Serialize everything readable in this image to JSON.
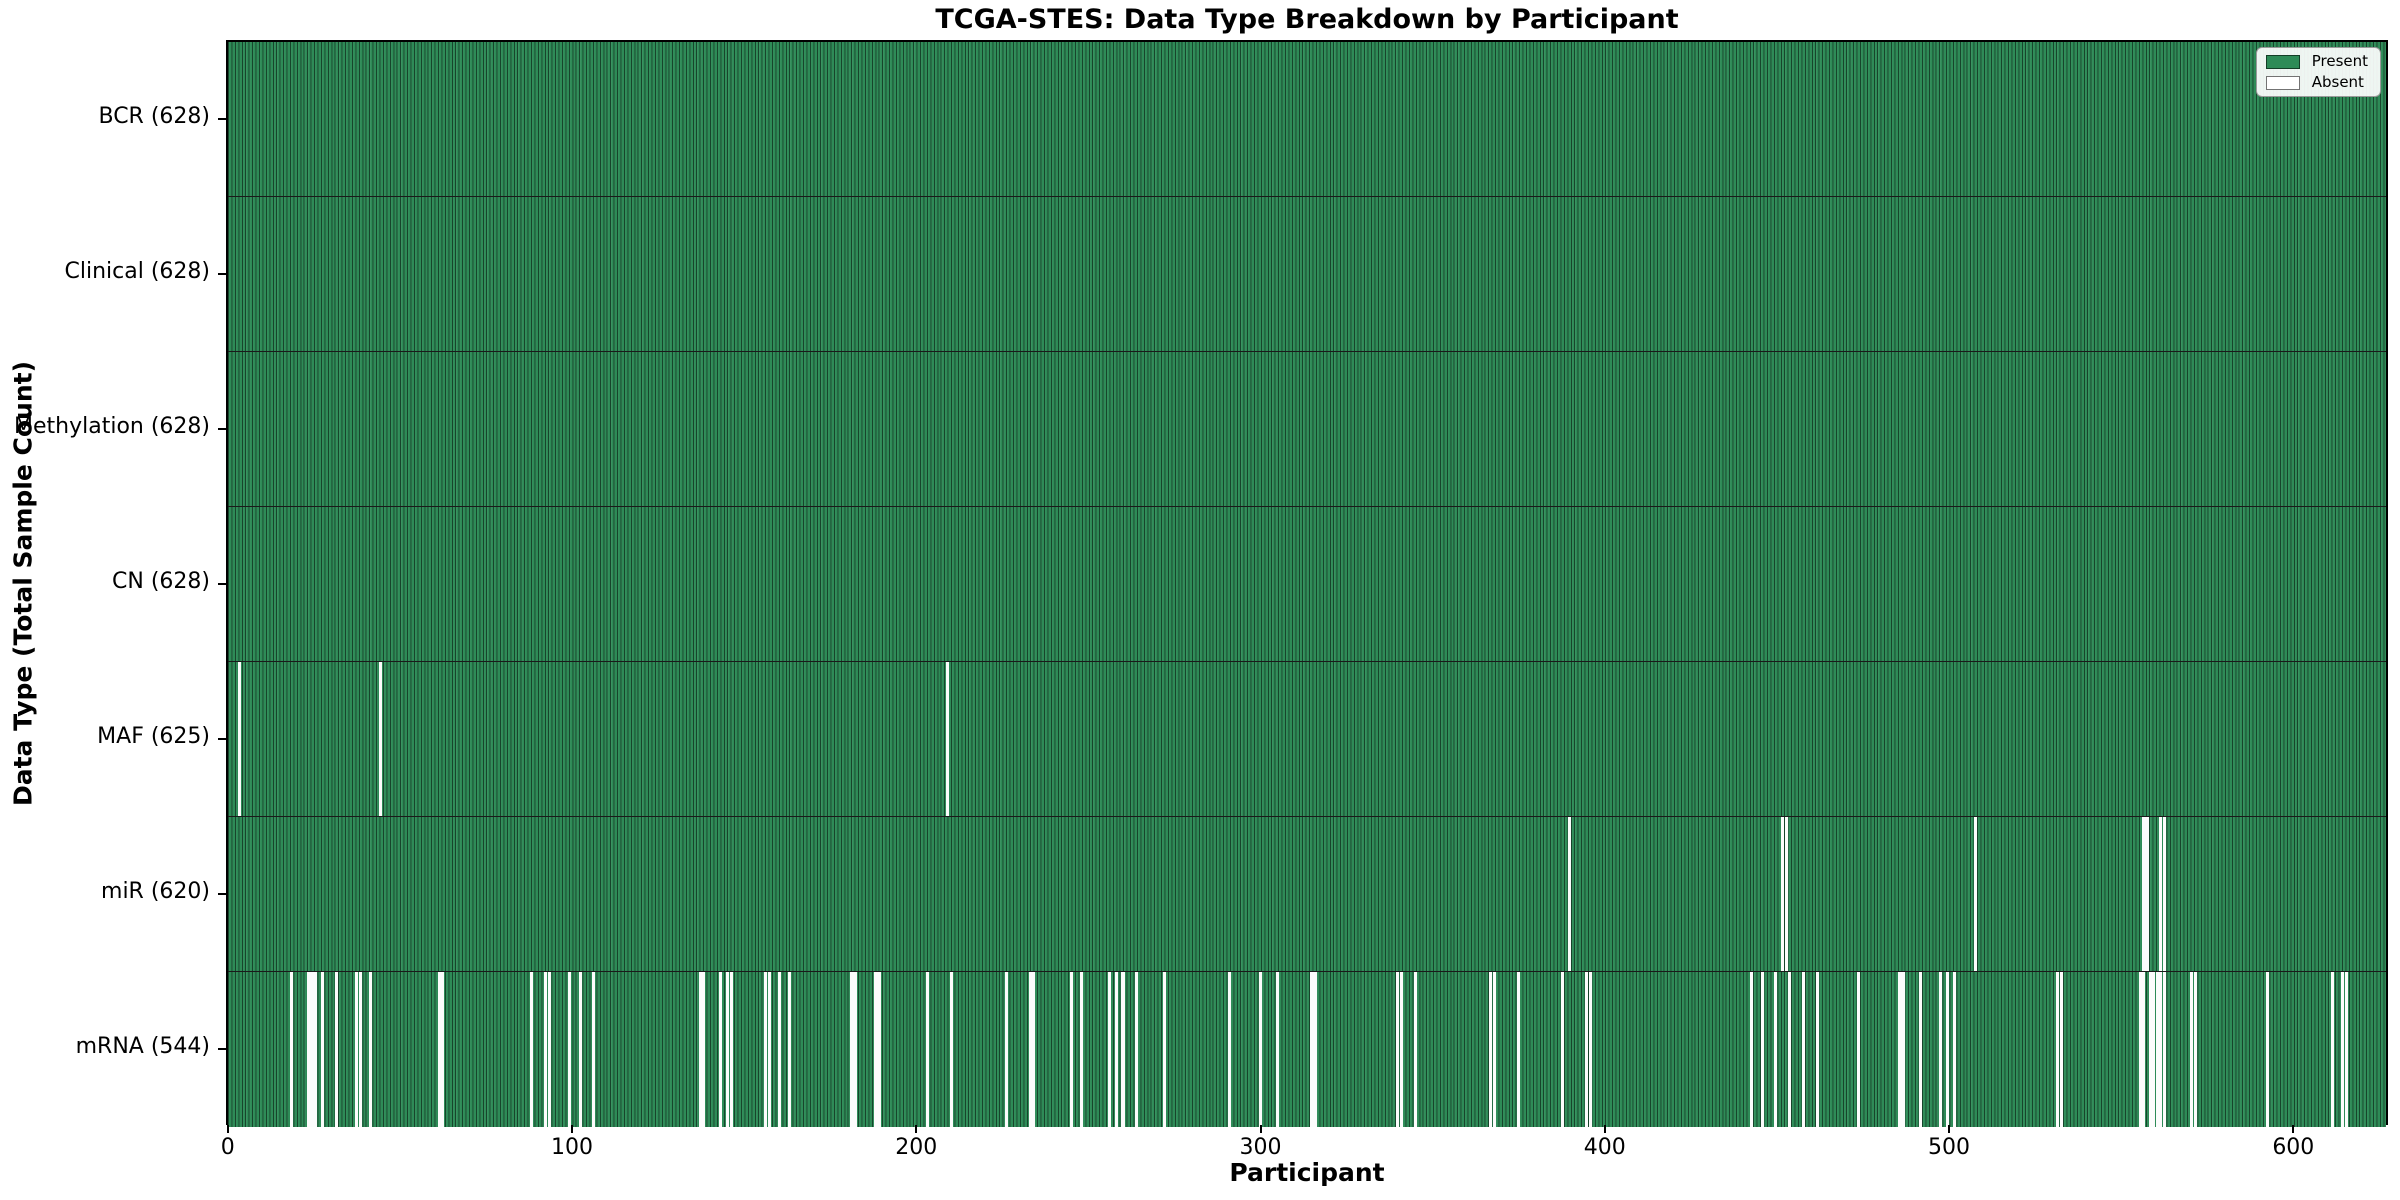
{
  "title": "TCGA-STES: Data Type Breakdown by Participant",
  "axes": {
    "xlabel": "Participant",
    "ylabel": "Data Type (Total Sample Count)"
  },
  "legend": {
    "items": [
      {
        "label": "Present",
        "color": "#2e8b57"
      },
      {
        "label": "Absent",
        "color": "#ffffff"
      }
    ]
  },
  "chart_data": {
    "type": "heatmap",
    "title": "TCGA-STES: Data Type Breakdown by Participant",
    "xlabel": "Participant",
    "ylabel": "Data Type (Total Sample Count)",
    "x_max": 628,
    "x_ticks": [
      0,
      100,
      200,
      300,
      400,
      500,
      600
    ],
    "legend_position": "upper right",
    "colors": {
      "present": "#2e8b57",
      "absent": "#ffffff",
      "bar_edge": "#1c5434",
      "row_separator": "#1a1a1a"
    },
    "rows": [
      {
        "label": "BCR (628)",
        "name": "BCR",
        "count": 628,
        "absent": []
      },
      {
        "label": "Clinical (628)",
        "name": "Clinical",
        "count": 628,
        "absent": []
      },
      {
        "label": "Methylation (628)",
        "name": "Methylation",
        "count": 628,
        "absent": []
      },
      {
        "label": "CN (628)",
        "name": "CN",
        "count": 628,
        "absent": []
      },
      {
        "label": "MAF (625)",
        "name": "MAF",
        "count": 625,
        "absent": [
          3,
          44,
          209
        ]
      },
      {
        "label": "miR (620)",
        "name": "miR",
        "count": 620,
        "absent": [
          390,
          452,
          453,
          508,
          557,
          558,
          562,
          563
        ]
      },
      {
        "label": "mRNA (544)",
        "name": "mRNA",
        "count": 544,
        "absent": [
          18,
          23,
          24,
          25,
          27,
          31,
          37,
          38,
          41,
          61,
          62,
          88,
          92,
          93,
          99,
          102,
          106,
          137,
          138,
          143,
          145,
          146,
          156,
          157,
          160,
          163,
          181,
          182,
          188,
          189,
          203,
          210,
          226,
          233,
          234,
          245,
          248,
          256,
          258,
          260,
          264,
          272,
          291,
          300,
          305,
          315,
          316,
          340,
          341,
          345,
          367,
          368,
          375,
          388,
          395,
          396,
          443,
          446,
          450,
          454,
          458,
          462,
          474,
          486,
          487,
          492,
          498,
          500,
          502,
          532,
          533,
          556,
          557,
          559,
          560,
          561,
          562,
          563,
          571,
          572,
          593,
          612,
          615,
          616
        ]
      }
    ]
  }
}
